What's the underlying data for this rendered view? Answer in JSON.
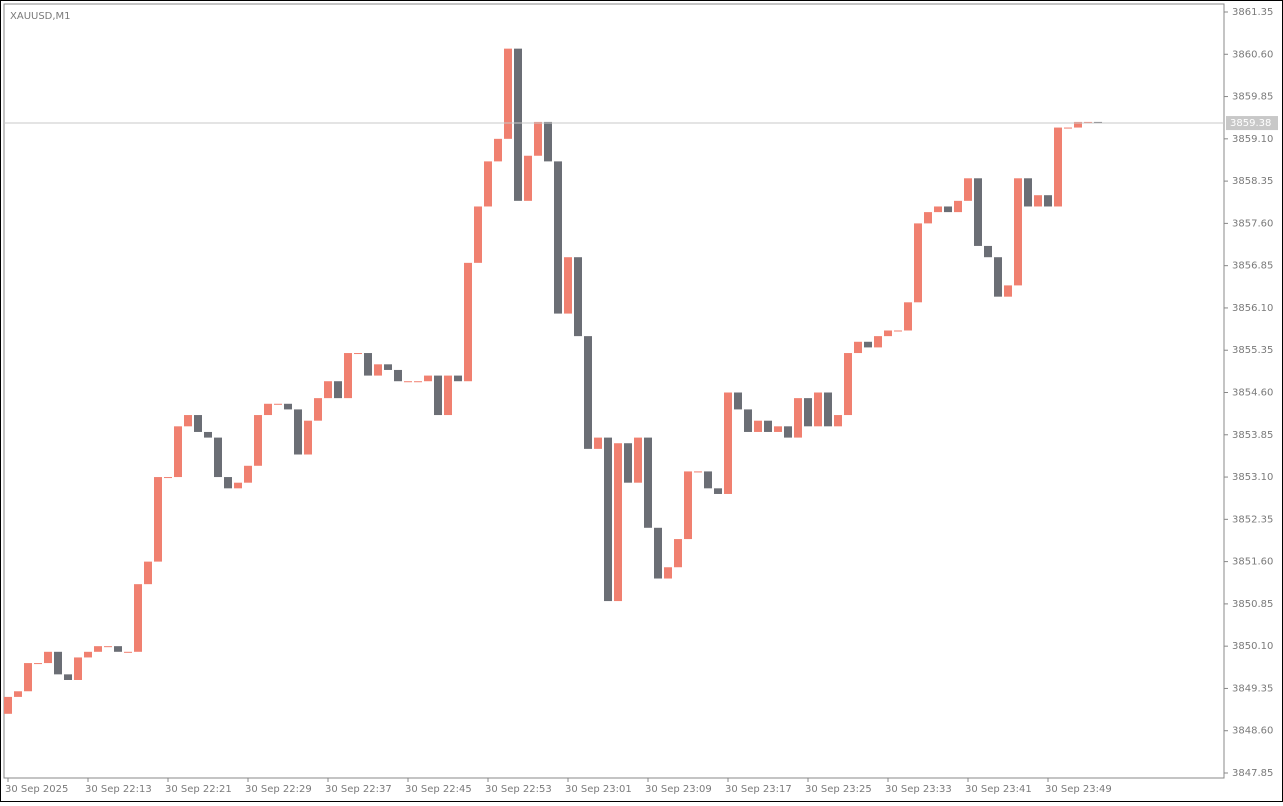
{
  "chart_data": {
    "type": "candlestick",
    "title": "XAUUSD,M1",
    "categories": [
      "30 Sep 2025",
      null,
      null,
      null,
      null,
      null,
      null,
      null,
      "30 Sep 22:13",
      null,
      null,
      null,
      null,
      null,
      null,
      null,
      "30 Sep 22:21",
      null,
      null,
      null,
      null,
      null,
      null,
      null,
      "30 Sep 22:29",
      null,
      null,
      null,
      null,
      null,
      null,
      null,
      "30 Sep 22:37",
      null,
      null,
      null,
      null,
      null,
      null,
      null,
      "30 Sep 22:45",
      null,
      null,
      null,
      null,
      null,
      null,
      null,
      "30 Sep 22:53",
      null,
      null,
      null,
      null,
      null,
      null,
      null,
      "30 Sep 23:01",
      null,
      null,
      null,
      null,
      null,
      null,
      null,
      "30 Sep 23:09",
      null,
      null,
      null,
      null,
      null,
      null,
      null,
      "30 Sep 23:17",
      null,
      null,
      null,
      null,
      null,
      null,
      null,
      "30 Sep 23:25",
      null,
      null,
      null,
      null,
      null,
      null,
      null,
      "30 Sep 23:33",
      null,
      null,
      null,
      null,
      null,
      null,
      null,
      "30 Sep 23:41",
      null,
      null,
      null,
      null,
      null,
      null,
      null,
      "30 Sep 23:49",
      null,
      null,
      null,
      null,
      null
    ],
    "open": [
      3848.9,
      3849.2,
      3849.3,
      3849.8,
      3849.8,
      3850.0,
      3849.6,
      3849.5,
      3849.9,
      3850.0,
      3850.1,
      3850.1,
      3850.0,
      3850.0,
      3851.2,
      3851.6,
      3853.1,
      3853.1,
      3854.0,
      3854.2,
      3853.9,
      3853.8,
      3853.1,
      3852.9,
      3853.0,
      3853.3,
      3854.2,
      3854.4,
      3854.4,
      3854.3,
      3853.5,
      3854.1,
      3854.5,
      3854.8,
      3854.5,
      3855.3,
      3855.3,
      3854.9,
      3855.1,
      3855.0,
      3854.8,
      3854.8,
      3854.8,
      3854.9,
      3854.2,
      3854.9,
      3854.8,
      3856.9,
      3857.9,
      3858.7,
      3859.1,
      3860.7,
      3858.0,
      3858.8,
      3859.4,
      3858.7,
      3856.0,
      3857.0,
      3855.6,
      3853.6,
      3853.8,
      3850.9,
      3853.7,
      3853.0,
      3853.8,
      3852.2,
      3851.3,
      3851.5,
      3852.0,
      3853.2,
      3853.2,
      3852.9,
      3852.8,
      3854.6,
      3854.3,
      3853.9,
      3854.1,
      3853.9,
      3854.0,
      3853.8,
      3854.5,
      3854.0,
      3854.6,
      3854.0,
      3854.2,
      3855.3,
      3855.5,
      3855.4,
      3855.6,
      3855.7,
      3855.7,
      3856.2,
      3857.6,
      3857.8,
      3857.9,
      3857.8,
      3858.0,
      3858.4,
      3857.2,
      3857.0,
      3856.3,
      3856.5,
      3858.4,
      3857.9,
      3858.1,
      3857.9,
      3859.3,
      3859.3,
      3859.4,
      3859.4
    ],
    "close": [
      3849.2,
      3849.3,
      3849.8,
      3849.8,
      3850.0,
      3849.6,
      3849.5,
      3849.9,
      3850.0,
      3850.1,
      3850.1,
      3850.0,
      3850.0,
      3851.2,
      3851.6,
      3853.1,
      3853.1,
      3854.0,
      3854.2,
      3853.9,
      3853.8,
      3853.1,
      3852.9,
      3853.0,
      3853.3,
      3854.2,
      3854.4,
      3854.4,
      3854.3,
      3853.5,
      3854.1,
      3854.5,
      3854.8,
      3854.5,
      3855.3,
      3855.3,
      3854.9,
      3855.1,
      3855.0,
      3854.8,
      3854.8,
      3854.8,
      3854.9,
      3854.2,
      3854.9,
      3854.8,
      3856.9,
      3857.9,
      3858.7,
      3859.1,
      3860.7,
      3858.0,
      3858.8,
      3859.4,
      3858.7,
      3856.0,
      3857.0,
      3855.6,
      3853.6,
      3853.8,
      3850.9,
      3853.7,
      3853.0,
      3853.8,
      3852.2,
      3851.3,
      3851.5,
      3852.0,
      3853.2,
      3853.2,
      3852.9,
      3852.8,
      3854.6,
      3854.3,
      3853.9,
      3854.1,
      3853.9,
      3854.0,
      3853.8,
      3854.5,
      3854.0,
      3854.6,
      3854.0,
      3854.2,
      3855.3,
      3855.5,
      3855.4,
      3855.6,
      3855.7,
      3855.7,
      3856.2,
      3857.6,
      3857.8,
      3857.9,
      3857.8,
      3858.0,
      3858.4,
      3857.2,
      3857.0,
      3856.3,
      3856.5,
      3858.4,
      3857.9,
      3858.1,
      3857.9,
      3859.3,
      3859.3,
      3859.4,
      3859.4,
      3859.38
    ],
    "up_color": "#f08070",
    "down_color": "#6b6e75",
    "ylim": [
      3847.85,
      3861.35
    ],
    "yticks": [
      3861.35,
      {
        "value": 3860.6,
        "label": "3860.60"
      },
      3859.85,
      {
        "value": 3859.1,
        "label": "3859.10"
      },
      3858.35,
      {
        "value": 3857.6,
        "label": "3857.60"
      },
      3856.85,
      {
        "value": 3856.1,
        "label": "3856.10"
      },
      3855.35,
      {
        "value": 3854.6,
        "label": "3854.60"
      },
      3853.85,
      {
        "value": 3853.1,
        "label": "3853.10"
      },
      3852.35,
      {
        "value": 3851.6,
        "label": "3851.60"
      },
      3850.85,
      {
        "value": 3850.1,
        "label": "3850.10"
      },
      3849.35,
      {
        "value": 3848.6,
        "label": "3848.60"
      },
      3847.85
    ],
    "current_price": 3859.38
  }
}
